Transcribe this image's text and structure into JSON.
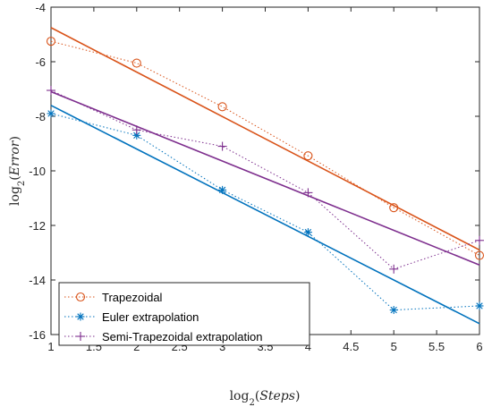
{
  "chart_data": {
    "type": "line",
    "title": "",
    "xlabel": {
      "base": "log",
      "sub": "2",
      "arg": "Steps"
    },
    "ylabel": {
      "base": "log",
      "sub": "2",
      "arg": "Error"
    },
    "xlim": [
      1,
      6
    ],
    "ylim": [
      -16,
      -4
    ],
    "xticks": [
      "1",
      "1.5",
      "2",
      "2.5",
      "3",
      "3.5",
      "4",
      "4.5",
      "5",
      "5.5",
      "6"
    ],
    "yticks": [
      "-4",
      "-6",
      "-8",
      "-10",
      "-12",
      "-14",
      "-16"
    ],
    "grid": false,
    "legend_position": "bottom-left",
    "x": [
      1,
      2,
      3,
      4,
      5,
      6
    ],
    "series": [
      {
        "name": "Trapezoidal",
        "marker": "circle",
        "color": "#D95319",
        "values": [
          -5.25,
          -6.05,
          -7.65,
          -9.45,
          -11.35,
          -13.1
        ],
        "fit": [
          -4.75,
          -12.9
        ]
      },
      {
        "name": "Euler extrapolation",
        "marker": "asterisk",
        "color": "#0072BD",
        "values": [
          -7.9,
          -8.7,
          -10.7,
          -12.25,
          -15.1,
          -14.95
        ],
        "fit": [
          -7.6,
          -15.6
        ]
      },
      {
        "name": "Semi-Trapezoidal extrapolation",
        "marker": "plus",
        "color": "#7E2F8E",
        "values": [
          -7.05,
          -8.5,
          -9.1,
          -10.8,
          -13.6,
          -12.55
        ],
        "fit": [
          -7.1,
          -13.45
        ]
      }
    ]
  }
}
